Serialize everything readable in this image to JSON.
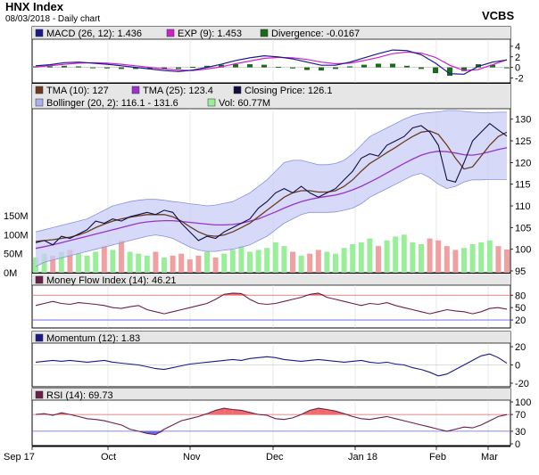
{
  "header": {
    "title": "HNX Index",
    "subtitle": "08/03/2018 - Daily chart",
    "brand": "VCBS"
  },
  "chart_data": [
    {
      "type": "line",
      "panel": "macd",
      "legend": [
        {
          "label": "MACD (26, 12): 1.436",
          "color": "#1a1a8a"
        },
        {
          "label": "EXP (9): 1.453",
          "color": "#cc22cc"
        },
        {
          "label": "Divergence: -0.0167",
          "color": "#1b6b1b"
        }
      ],
      "y_ticks": [
        "4",
        "2",
        "0",
        "-2"
      ],
      "ylim": [
        -2.6,
        5
      ],
      "series": [
        {
          "name": "MACD (26, 12)",
          "color": "#1a1a8a",
          "values": [
            0.3,
            0.5,
            0.9,
            1.0,
            0.8,
            0.6,
            0.3,
            0.0,
            -0.3,
            -0.6,
            -0.8,
            -0.5,
            0.0,
            0.6,
            1.3,
            1.8,
            2.2,
            2.0,
            1.6,
            1.0,
            0.4,
            0.4,
            1.0,
            1.8,
            2.6,
            3.3,
            3.2,
            2.4,
            0.8,
            -1.2,
            -1.3,
            0.2,
            1.0,
            1.4
          ]
        },
        {
          "name": "EXP (9)",
          "color": "#cc22cc",
          "values": [
            0.1,
            0.3,
            0.6,
            0.8,
            0.9,
            0.8,
            0.6,
            0.3,
            0.0,
            -0.3,
            -0.5,
            -0.6,
            -0.3,
            0.1,
            0.7,
            1.2,
            1.7,
            1.9,
            1.8,
            1.5,
            1.0,
            0.7,
            0.8,
            1.3,
            1.9,
            2.6,
            2.9,
            2.7,
            1.9,
            0.4,
            -0.6,
            -0.4,
            0.5,
            1.45
          ]
        },
        {
          "name": "Divergence",
          "color": "#1b6b1b",
          "values": [
            0.2,
            0.2,
            0.3,
            0.2,
            -0.1,
            -0.2,
            -0.3,
            -0.3,
            -0.3,
            -0.3,
            -0.3,
            0.1,
            0.3,
            0.5,
            0.6,
            0.6,
            0.5,
            0.1,
            -0.2,
            -0.5,
            -0.6,
            -0.3,
            0.2,
            0.5,
            0.7,
            0.7,
            0.3,
            -0.3,
            -1.1,
            -1.6,
            -0.7,
            0.6,
            0.5,
            -0.02
          ]
        }
      ]
    },
    {
      "type": "line",
      "panel": "price",
      "legend": [
        {
          "label": "TMA (10): 127",
          "color": "#6b3a1f"
        },
        {
          "label": "TMA (25): 123.4",
          "color": "#9933cc"
        },
        {
          "label": "Closing Price: 126.1",
          "color": "#101040"
        },
        {
          "label": "Bollinger (20, 2): 116.1 - 131.6",
          "color": "#aab0f0"
        },
        {
          "label": "Vol: 60.77M",
          "color": "#99ee99"
        }
      ],
      "y_ticks": [
        "130",
        "125",
        "120",
        "115",
        "110",
        "105",
        "100",
        "95"
      ],
      "ylim": [
        95,
        132
      ],
      "volume_ticks": [
        "150M",
        "100M",
        "50M",
        "0M"
      ],
      "volume_max": 150,
      "series": [
        {
          "name": "Closing Price",
          "color": "#101040",
          "values": [
            101.5,
            102,
            101,
            103,
            102.5,
            103.5,
            104.5,
            106.5,
            106,
            107,
            106.5,
            107.5,
            108,
            108.5,
            108,
            109,
            108.5,
            106,
            104,
            102,
            103,
            102.5,
            104,
            105,
            106,
            107,
            109.5,
            111,
            113,
            114,
            113,
            114.5,
            113,
            112,
            113,
            114,
            116,
            118,
            121,
            122,
            121.5,
            124,
            125,
            126,
            128,
            128.5,
            127,
            124,
            116,
            115.5,
            120,
            125,
            127,
            129,
            127.5,
            126.1
          ]
        },
        {
          "name": "TMA (10)",
          "color": "#6b3a1f",
          "values": [
            101.8,
            102,
            102.2,
            102.5,
            102.8,
            103.3,
            104,
            105,
            105.8,
            106.5,
            107,
            107.4,
            107.7,
            108,
            108,
            108,
            107.5,
            106.5,
            105.2,
            104,
            103.2,
            103,
            103.3,
            104,
            105,
            106,
            107.5,
            109,
            110.5,
            112,
            113,
            113.5,
            113.5,
            113.2,
            113.2,
            113.5,
            114.5,
            116,
            118,
            119.8,
            121,
            122.3,
            123.5,
            124.8,
            126,
            127,
            127.3,
            126.5,
            124,
            121,
            118.5,
            119,
            121.5,
            124,
            126,
            127
          ]
        },
        {
          "name": "TMA (25)",
          "color": "#9933cc",
          "values": [
            100.2,
            100.6,
            101,
            101.5,
            102,
            102.5,
            103,
            103.5,
            104,
            104.5,
            105,
            105.5,
            106,
            106.3,
            106.5,
            106.6,
            106.6,
            106.4,
            106.2,
            106,
            105.8,
            105.6,
            105.6,
            105.7,
            106,
            106.5,
            107,
            107.8,
            108.6,
            109.5,
            110.3,
            111,
            111.5,
            111.9,
            112.2,
            112.5,
            113,
            113.7,
            114.5,
            115.5,
            116.5,
            117.6,
            118.7,
            119.8,
            120.8,
            121.7,
            122.3,
            122.6,
            122.5,
            122.2,
            121.8,
            121.7,
            122,
            122.5,
            123,
            123.4
          ]
        },
        {
          "name": "Bollinger upper",
          "color": "#aab0f0",
          "values": [
            104,
            104.5,
            105,
            105.5,
            106,
            106.5,
            107,
            108,
            109,
            110,
            110.5,
            111,
            111.3,
            111.5,
            111.5,
            111.3,
            111,
            110.8,
            110.5,
            110.3,
            110,
            110.2,
            110.6,
            111,
            112,
            113,
            114.5,
            116,
            118,
            120,
            120.5,
            120.5,
            120,
            119.5,
            119.5,
            119.8,
            120.5,
            122,
            124,
            126,
            127,
            128,
            129,
            130,
            130.8,
            131.3,
            131.5,
            131.7,
            132,
            132,
            131.8,
            131.6,
            131.5,
            131.5,
            131.6,
            131.6
          ]
        },
        {
          "name": "Bollinger lower",
          "color": "#aab0f0",
          "values": [
            96,
            97,
            97.5,
            98,
            98.5,
            99,
            99.5,
            100,
            100.5,
            101,
            101.5,
            102,
            102.5,
            103,
            103.3,
            103,
            102.5,
            101.5,
            100.5,
            99.8,
            99.5,
            99.5,
            99.8,
            100,
            100.5,
            101,
            102,
            103,
            104.5,
            106,
            107,
            108,
            108.5,
            108.5,
            108.5,
            108.6,
            109,
            109.5,
            110.5,
            112,
            113,
            114,
            115,
            116,
            117,
            117.5,
            116.5,
            115,
            114,
            114.5,
            115.5,
            116,
            116,
            116.1,
            116.1,
            116.1
          ]
        },
        {
          "name": "Vol (M)",
          "color": "#99ee99",
          "values": [
            40,
            50,
            45,
            55,
            60,
            50,
            45,
            55,
            70,
            60,
            85,
            55,
            50,
            45,
            55,
            40,
            45,
            50,
            35,
            45,
            55,
            40,
            50,
            60,
            70,
            55,
            60,
            65,
            80,
            70,
            55,
            45,
            50,
            60,
            55,
            50,
            65,
            75,
            80,
            90,
            70,
            85,
            95,
            100,
            80,
            75,
            90,
            85,
            70,
            60,
            65,
            75,
            80,
            85,
            70,
            61
          ]
        }
      ]
    },
    {
      "type": "line",
      "panel": "mfi",
      "legend": [
        {
          "label": "Money Flow Index (14): 46.21",
          "color": "#6b1f4a"
        }
      ],
      "y_ticks": [
        "80",
        "50",
        "20"
      ],
      "overbought": 80,
      "oversold": 20,
      "ylim": [
        5,
        100
      ],
      "series": [
        {
          "name": "Money Flow Index (14)",
          "color": "#6b1f4a",
          "values": [
            55,
            60,
            65,
            60,
            58,
            62,
            60,
            58,
            55,
            50,
            48,
            52,
            55,
            45,
            40,
            35,
            40,
            45,
            50,
            55,
            60,
            70,
            82,
            85,
            84,
            70,
            60,
            58,
            60,
            65,
            70,
            75,
            82,
            85,
            75,
            70,
            65,
            60,
            55,
            60,
            58,
            62,
            55,
            50,
            45,
            40,
            35,
            40,
            45,
            42,
            40,
            35,
            40,
            48,
            50,
            46.21
          ]
        }
      ]
    },
    {
      "type": "line",
      "panel": "momentum",
      "legend": [
        {
          "label": "Momentum (12): 1.83",
          "color": "#1a1a8a"
        }
      ],
      "y_ticks": [
        "20",
        "0",
        "-20"
      ],
      "ylim": [
        -22,
        22
      ],
      "series": [
        {
          "name": "Momentum (12)",
          "color": "#1a1a8a",
          "values": [
            3,
            4,
            5,
            4,
            5,
            4,
            3,
            4,
            5,
            3,
            2,
            1,
            0,
            -2,
            -4,
            -5,
            -3,
            -1,
            1,
            2,
            3,
            4,
            5,
            6,
            5,
            7,
            8,
            9,
            8,
            6,
            5,
            4,
            5,
            6,
            5,
            4,
            3,
            4,
            5,
            3,
            2,
            3,
            1,
            0,
            -3,
            -5,
            -8,
            -12,
            -10,
            -5,
            0,
            5,
            10,
            12,
            8,
            1.83
          ]
        }
      ]
    },
    {
      "type": "line",
      "panel": "rsi",
      "legend": [
        {
          "label": "RSI (14): 69.73",
          "color": "#6b1f4a"
        }
      ],
      "y_ticks": [
        "100",
        "70",
        "30",
        "0"
      ],
      "overbought": 70,
      "oversold": 30,
      "ylim": [
        0,
        100
      ],
      "series": [
        {
          "name": "RSI (14)",
          "color": "#6b1f4a",
          "values": [
            70,
            72,
            68,
            74,
            70,
            65,
            60,
            58,
            55,
            50,
            45,
            35,
            30,
            25,
            22,
            35,
            45,
            55,
            60,
            65,
            72,
            80,
            85,
            82,
            80,
            75,
            70,
            68,
            60,
            58,
            62,
            70,
            80,
            85,
            82,
            78,
            72,
            65,
            60,
            58,
            62,
            65,
            60,
            55,
            50,
            45,
            40,
            35,
            30,
            35,
            40,
            38,
            45,
            55,
            65,
            69.73
          ]
        }
      ]
    }
  ],
  "x_axis": {
    "labels": [
      "Sep 17",
      "Oct",
      "Nov",
      "Dec",
      "Jan 18",
      "Feb",
      "Mar"
    ]
  }
}
